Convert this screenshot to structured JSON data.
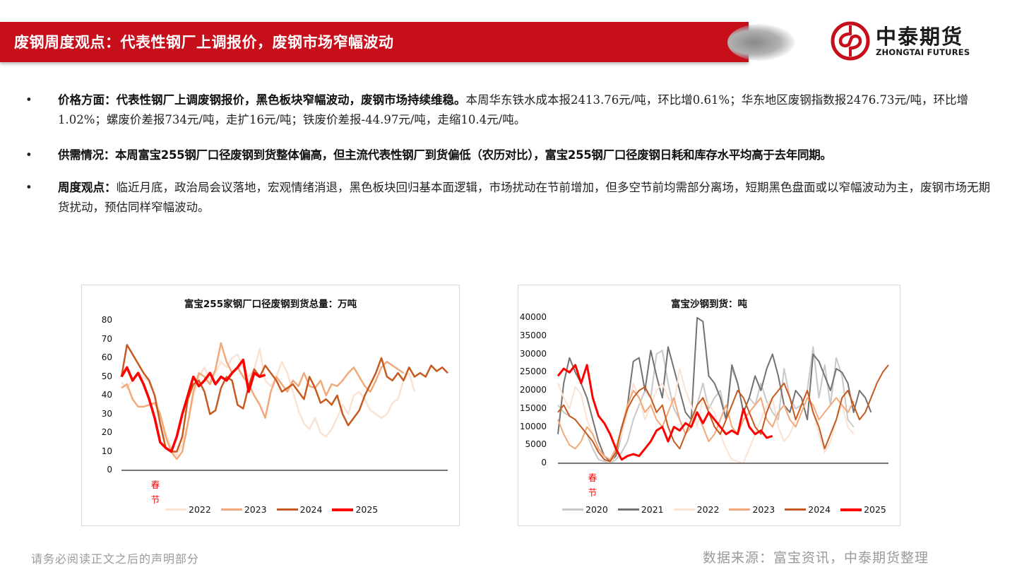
{
  "header": {
    "title": "废钢周度观点：代表性钢厂上调报价，废钢市场窄幅波动",
    "accent_color": "#c70e1b"
  },
  "logo": {
    "name_cn": "中泰期货",
    "name_en": "ZHONGTAI FUTURES",
    "icon": "zhongtai-logo-icon"
  },
  "bullets": [
    {
      "label": "价格方面：代表性钢厂上调废钢报价，黑色板块窄幅波动，废钢市场持续维稳。",
      "text": "本周华东铁水成本报2413.76元/吨，环比增0.61%；华东地区废钢指数报2476.73元/吨，环比增1.02%；螺废价差报734元/吨，走扩16元/吨；铁废价差报-44.97元/吨，走缩10.4元/吨。"
    },
    {
      "label": "供需情况：本周富宝255钢厂口径废钢到货整体偏高，但主流代表性钢厂到货偏低（农历对比），富宝255钢厂口径废钢日耗和库存水平均高于去年同期。",
      "text": ""
    },
    {
      "label": "周度观点：",
      "text": "临近月底，政治局会议落地，宏观情绪消退，黑色板块回归基本面逻辑，市场扰动在节前增加，但多空节前均需部分离场，短期黑色盘面或以窄幅波动为主，废钢市场无期货扰动，预估同样窄幅波动。"
    }
  ],
  "bullet_symbol": "•",
  "chart_data": [
    {
      "type": "line",
      "title": "富宝255家钢厂口径废钢到货总量：万吨",
      "xlabel": "",
      "ylabel": "万吨",
      "ylim": [
        0,
        80
      ],
      "yticks": [
        "80",
        "70",
        "60",
        "50",
        "40",
        "30",
        "20",
        "10",
        "0"
      ],
      "annotation": "春节",
      "legend_position": "bottom",
      "grid": false,
      "x_note": "weekly index (lunar-aligned), ~52 points",
      "series": [
        {
          "name": "2022",
          "color": "#fbe3d4",
          "width": 2.5,
          "values": [
            47,
            44,
            48,
            52,
            50,
            47,
            40,
            30,
            20,
            12,
            8,
            14,
            25,
            40,
            50,
            55,
            48,
            52,
            58,
            55,
            60,
            62,
            55,
            50,
            54,
            65,
            48,
            45,
            50,
            58,
            52,
            42,
            32,
            25,
            22,
            28,
            20,
            18,
            22,
            28,
            35,
            30,
            40,
            42,
            38,
            32,
            30,
            28,
            30,
            36,
            38,
            48,
            52,
            42
          ]
        },
        {
          "name": "2023",
          "color": "#f2a97a",
          "width": 2.5,
          "values": [
            44,
            46,
            38,
            34,
            34,
            35,
            36,
            30,
            18,
            10,
            6,
            10,
            25,
            42,
            52,
            50,
            46,
            54,
            68,
            58,
            52,
            55,
            50,
            46,
            40,
            35,
            28,
            42,
            50,
            46,
            42,
            48,
            45,
            52,
            45,
            44,
            48,
            40,
            46,
            45,
            48,
            52,
            55,
            50,
            45,
            42,
            48,
            55,
            58,
            56,
            54,
            52
          ]
        },
        {
          "name": "2024",
          "color": "#c65a1e",
          "width": 2.5,
          "values": [
            50,
            67,
            62,
            57,
            52,
            48,
            40,
            25,
            12,
            10,
            10,
            18,
            38,
            46,
            48,
            42,
            30,
            32,
            44,
            50,
            48,
            35,
            33,
            45,
            54,
            50,
            56,
            52,
            48,
            42,
            44,
            46,
            42,
            38,
            50,
            44,
            36,
            38,
            35,
            40,
            30,
            24,
            28,
            32,
            40,
            46,
            52,
            60,
            50,
            48,
            52,
            48,
            55,
            50,
            52,
            50,
            56,
            53,
            55,
            52
          ]
        },
        {
          "name": "2025",
          "color": "#ff0000",
          "width": 3.5,
          "values": [
            50,
            55,
            48,
            52,
            46,
            38,
            28,
            15,
            12,
            10,
            18,
            30,
            40,
            50,
            45,
            48,
            52,
            46,
            50,
            48,
            52,
            55,
            59,
            42,
            52,
            50,
            51
          ]
        }
      ]
    },
    {
      "type": "line",
      "title": "富宝沙钢到货：吨",
      "xlabel": "",
      "ylabel": "吨",
      "ylim": [
        0,
        40000
      ],
      "yticks": [
        "40000",
        "35000",
        "30000",
        "25000",
        "20000",
        "15000",
        "10000",
        "5000",
        "0"
      ],
      "annotation": "春节",
      "legend_position": "bottom",
      "grid": false,
      "series": [
        {
          "name": "2020",
          "color": "#c8c8c8",
          "width": 2,
          "values": [
            16000,
            14000,
            13000,
            12000,
            10000,
            8000,
            4000,
            1000,
            500,
            0,
            1000,
            3000,
            6000,
            12000,
            16000,
            20000,
            18000,
            30000,
            31000,
            22000,
            15000,
            12000,
            8000,
            10000,
            16000,
            22000,
            15000,
            18000,
            20000,
            12000,
            26000,
            22000,
            14000,
            18000,
            16000,
            22000,
            17000,
            14000,
            12000,
            26000,
            18000,
            15000,
            16000,
            20000,
            32000,
            18000,
            27000,
            16000,
            29000,
            24000,
            12000,
            10000
          ]
        },
        {
          "name": "2021",
          "color": "#767171",
          "width": 2,
          "values": [
            8000,
            22000,
            29000,
            25000,
            22000,
            18000,
            12000,
            6000,
            2000,
            500,
            2000,
            8000,
            16000,
            28000,
            29000,
            20000,
            31000,
            24000,
            18000,
            32000,
            26000,
            20000,
            14000,
            12000,
            40000,
            39000,
            24000,
            22000,
            18000,
            12000,
            27000,
            22000,
            14000,
            18000,
            24000,
            20000,
            26000,
            30000,
            24000,
            16000,
            14000,
            20000,
            18000,
            12000,
            30000,
            28000,
            24000,
            20000,
            26000,
            25000,
            22000,
            14000,
            20000,
            18000,
            14000
          ]
        },
        {
          "name": "2022",
          "color": "#fbe3d4",
          "width": 2,
          "values": [
            22000,
            18000,
            15000,
            21000,
            19000,
            12000,
            8000,
            4000,
            1000,
            0,
            3000,
            8000,
            14000,
            22000,
            18000,
            12000,
            16000,
            20000,
            22000,
            18000,
            16000,
            26000,
            20000,
            16000,
            10000,
            18000,
            16000,
            14000,
            8000,
            4000,
            1000,
            500,
            0,
            4000,
            8000,
            12000,
            16000,
            18000,
            10000,
            6000,
            8000,
            12000,
            16000,
            20000,
            14000,
            8000,
            3000,
            6000,
            12000,
            16000,
            10000,
            8000
          ]
        },
        {
          "name": "2023",
          "color": "#f2a97a",
          "width": 2,
          "values": [
            12000,
            8000,
            5000,
            4000,
            6000,
            10000,
            8000,
            4000,
            2000,
            1000,
            4000,
            10000,
            16000,
            20000,
            18000,
            14000,
            16000,
            12000,
            10000,
            14000,
            18000,
            12000,
            8000,
            10000,
            14000,
            10000,
            6000,
            8000,
            12000,
            16000,
            10000,
            8000,
            12000,
            14000,
            16000,
            18000,
            12000,
            10000,
            14000,
            16000,
            12000,
            10000,
            14000,
            18000,
            16000,
            12000,
            14000,
            16000,
            18000,
            16000,
            14000,
            17000
          ]
        },
        {
          "name": "2024",
          "color": "#c65a1e",
          "width": 2,
          "values": [
            14000,
            16000,
            13000,
            12000,
            10000,
            8000,
            6000,
            3000,
            1000,
            500,
            3000,
            10000,
            15000,
            18000,
            20000,
            21000,
            18000,
            14000,
            16000,
            10000,
            6000,
            4000,
            8000,
            12000,
            16000,
            18000,
            14000,
            10000,
            8000,
            12000,
            16000,
            20000,
            18000,
            14000,
            10000,
            8000,
            14000,
            18000,
            20000,
            22000,
            18000,
            12000,
            16000,
            20000,
            14000,
            10000,
            4000,
            8000,
            12000,
            18000,
            20000,
            16000,
            12000,
            14000,
            18000,
            22000,
            25000,
            27000
          ]
        },
        {
          "name": "2025",
          "color": "#ff0000",
          "width": 3,
          "values": [
            24000,
            26000,
            25000,
            27000,
            22000,
            27000,
            18000,
            13000,
            11000,
            8000,
            4000,
            1000,
            2000,
            2500,
            2000,
            4000,
            6000,
            9000,
            10000,
            6000,
            10000,
            9000,
            11000,
            10000,
            14000,
            11000,
            14000,
            12000,
            10000,
            8000,
            9000,
            8000,
            15000,
            10000,
            8000,
            9000,
            7000,
            7500
          ]
        }
      ]
    }
  ],
  "charts_ui": {
    "left": {
      "title": "富宝255家钢厂口径废钢到货总量：万吨",
      "festival_char_1": "春",
      "festival_char_2": "节"
    },
    "right": {
      "title": "富宝沙钢到货：吨",
      "festival_char_1": "春",
      "festival_char_2": "节"
    }
  },
  "footer": {
    "disclaimer": "请务必阅读正文之后的声明部分",
    "source": "数据来源：富宝资讯，中泰期货整理"
  }
}
